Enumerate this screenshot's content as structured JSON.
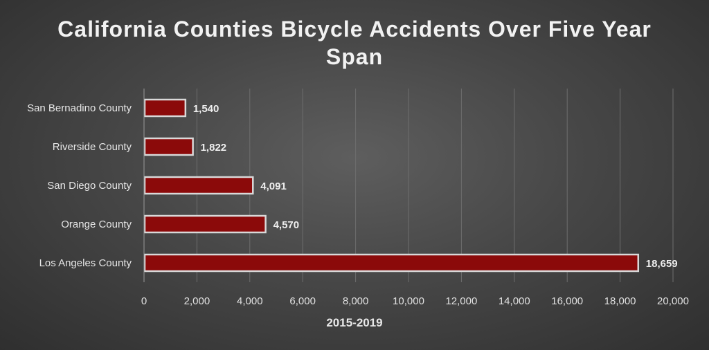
{
  "chart_data": {
    "type": "bar",
    "orientation": "horizontal",
    "title": "California Counties Bicycle Accidents Over Five Year Span",
    "xlabel": "2015-2019",
    "ylabel": "",
    "categories": [
      "San Bernadino County",
      "Riverside County",
      "San Diego County",
      "Orange County",
      "Los Angeles County"
    ],
    "values": [
      1540,
      1822,
      4091,
      4570,
      18659
    ],
    "value_labels": [
      "1,540",
      "1,822",
      "4,091",
      "4,570",
      "18,659"
    ],
    "xlim": [
      0,
      20000
    ],
    "x_ticks": [
      0,
      2000,
      4000,
      6000,
      8000,
      10000,
      12000,
      14000,
      16000,
      18000,
      20000
    ],
    "x_tick_labels": [
      "0",
      "2,000",
      "4,000",
      "6,000",
      "8,000",
      "10,000",
      "12,000",
      "14,000",
      "16,000",
      "18,000",
      "20,000"
    ],
    "grid": true,
    "bar_color": "#8b0a0a",
    "bar_border_color": "#d9d9d9"
  }
}
